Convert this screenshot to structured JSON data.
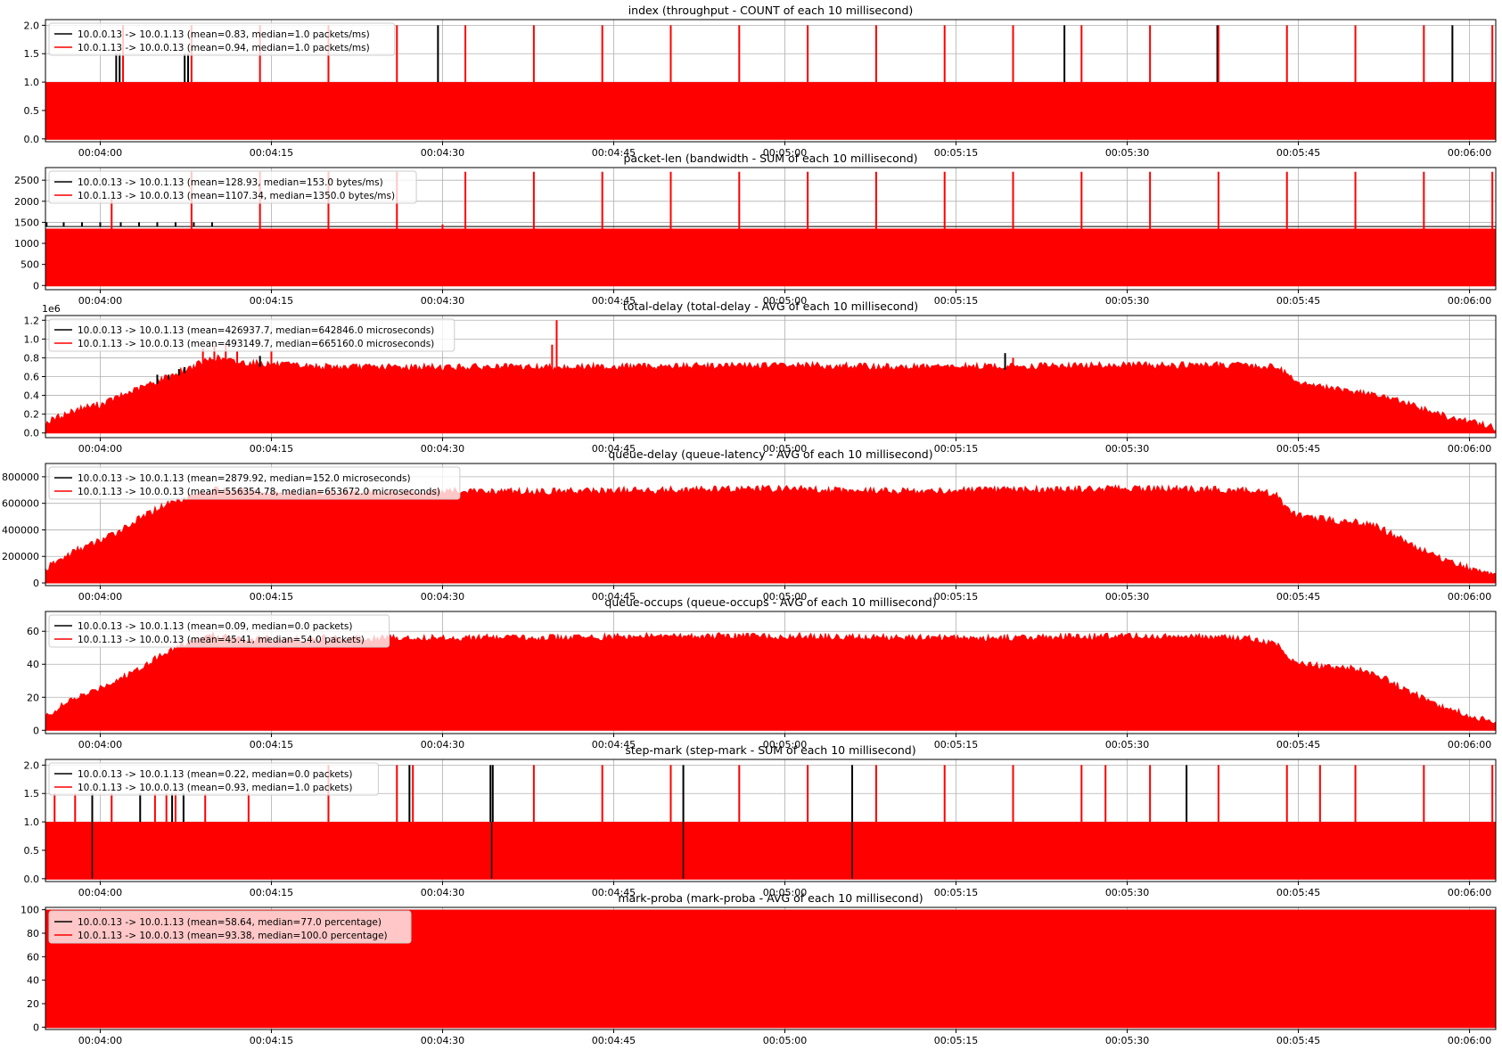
{
  "figure": {
    "colors": {
      "series_a": "#000000",
      "series_b": "#ff0000",
      "grid": "#b0b0b0",
      "axis": "#000000"
    },
    "time_ticks": [
      "00:04:00",
      "00:04:15",
      "00:04:30",
      "00:04:45",
      "00:05:00",
      "00:05:15",
      "00:05:30",
      "00:05:45",
      "00:06:00"
    ]
  },
  "chart_data": [
    {
      "type": "bar",
      "title": "index (throughput - COUNT of each 10 millisecond)",
      "ylim": [
        -0.05,
        2.1
      ],
      "yticks": [
        "0.0",
        "0.5",
        "1.0",
        "1.5",
        "2.0"
      ],
      "ytick_values": [
        0,
        0.5,
        1.0,
        1.5,
        2.0
      ],
      "offset_text": "",
      "xlim_seconds": [
        235.2,
        362.3
      ],
      "grid": true,
      "legend": "upper-left",
      "series": [
        {
          "name": "10.0.0.13 -> 10.0.1.13 (mean=0.83, median=1.0 packets/ms)",
          "color": "#000000",
          "baseline": 1.0,
          "spikes": [
            [
              241.4,
              1.5
            ],
            [
              241.7,
              1.5
            ],
            [
              247.4,
              1.5
            ],
            [
              247.7,
              1.5
            ],
            [
              269.6,
              2.0
            ],
            [
              324.5,
              2.0
            ],
            [
              337.9,
              2.0
            ],
            [
              358.5,
              2.0
            ]
          ]
        },
        {
          "name": "10.0.1.13 -> 10.0.0.13 (mean=0.94, median=1.0 packets/ms)",
          "color": "#ff0000",
          "baseline": 1.0,
          "spikes": [
            [
              242.0,
              2.0
            ],
            [
              248.0,
              2.0
            ],
            [
              254.0,
              2.0
            ],
            [
              260.0,
              2.0
            ],
            [
              266.0,
              2.0
            ],
            [
              272.0,
              2.0
            ],
            [
              278.0,
              2.0
            ],
            [
              284.0,
              2.0
            ],
            [
              290.0,
              2.0
            ],
            [
              296.0,
              2.0
            ],
            [
              302.0,
              2.0
            ],
            [
              308.0,
              2.0
            ],
            [
              314.0,
              2.0
            ],
            [
              320.0,
              2.0
            ],
            [
              326.0,
              2.0
            ],
            [
              332.0,
              2.0
            ],
            [
              338.0,
              2.0
            ],
            [
              344.0,
              2.0
            ],
            [
              350.0,
              2.0
            ],
            [
              356.0,
              2.0
            ],
            [
              362.0,
              2.0
            ]
          ]
        }
      ]
    },
    {
      "type": "bar",
      "title": "packet-len (bandwidth - SUM of each 10 millisecond)",
      "ylim": [
        -100,
        2800
      ],
      "yticks": [
        "0",
        "500",
        "1000",
        "1500",
        "2000",
        "2500"
      ],
      "ytick_values": [
        0,
        500,
        1000,
        1500,
        2000,
        2500
      ],
      "offset_text": "",
      "xlim_seconds": [
        235.2,
        362.3
      ],
      "grid": true,
      "legend": "upper-left",
      "series": [
        {
          "name": "10.0.0.13 -> 10.0.1.13 (mean=128.93, median=153.0 bytes/ms)",
          "color": "#000000",
          "baseline": 1400,
          "spikes": [
            [
              235.3,
              1500
            ],
            [
              236.8,
              1500
            ],
            [
              238.4,
              1500
            ],
            [
              240.0,
              1500
            ],
            [
              241.8,
              1500
            ],
            [
              243.4,
              1500
            ],
            [
              245.0,
              1500
            ],
            [
              246.6,
              1500
            ],
            [
              248.2,
              1500
            ],
            [
              249.8,
              1500
            ]
          ]
        },
        {
          "name": "10.0.1.13 -> 10.0.0.13 (mean=1107.34, median=1350.0 bytes/ms)",
          "color": "#ff0000",
          "baseline": 1350,
          "spikes": [
            [
              241.0,
              2050
            ],
            [
              248.0,
              2700
            ],
            [
              254.0,
              2700
            ],
            [
              260.0,
              2700
            ],
            [
              266.0,
              2700
            ],
            [
              272.0,
              2700
            ],
            [
              278.0,
              2700
            ],
            [
              284.0,
              2700
            ],
            [
              290.0,
              2700
            ],
            [
              296.0,
              2700
            ],
            [
              302.0,
              2700
            ],
            [
              308.0,
              2700
            ],
            [
              314.0,
              2700
            ],
            [
              320.0,
              2700
            ],
            [
              326.0,
              2700
            ],
            [
              332.0,
              2700
            ],
            [
              338.0,
              2700
            ],
            [
              344.0,
              2700
            ],
            [
              350.0,
              2700
            ],
            [
              356.0,
              2700
            ],
            [
              362.0,
              2700
            ],
            [
              270.0,
              1450
            ],
            [
              290.0,
              1450
            ],
            [
              320.0,
              1450
            ],
            [
              350.0,
              1450
            ]
          ]
        }
      ]
    },
    {
      "type": "area",
      "title": "total-delay (total-delay - AVG of each 10 millisecond)",
      "ylim": [
        -0.05,
        1.25
      ],
      "yticks": [
        "0.0",
        "0.2",
        "0.4",
        "0.6",
        "0.8",
        "1.0",
        "1.2"
      ],
      "ytick_values": [
        0,
        0.2,
        0.4,
        0.6,
        0.8,
        1.0,
        1.2
      ],
      "offset_text": "1e6",
      "xlim_seconds": [
        235.2,
        362.3
      ],
      "grid": true,
      "legend": "upper-left",
      "envelope_x_seconds": [
        235.2,
        236,
        237,
        238,
        239,
        240,
        241,
        242,
        243,
        244,
        245,
        246,
        247,
        248,
        249,
        250,
        252,
        254,
        256,
        258,
        260,
        270,
        280,
        290,
        300,
        310,
        320,
        330,
        340,
        343,
        344,
        345,
        346,
        347,
        348,
        350,
        352,
        354,
        356,
        358,
        360,
        362.3
      ],
      "envelope_y": [
        0.1,
        0.15,
        0.2,
        0.25,
        0.28,
        0.3,
        0.35,
        0.4,
        0.45,
        0.5,
        0.55,
        0.6,
        0.65,
        0.7,
        0.75,
        0.8,
        0.75,
        0.74,
        0.72,
        0.71,
        0.7,
        0.7,
        0.7,
        0.71,
        0.72,
        0.7,
        0.71,
        0.72,
        0.72,
        0.7,
        0.63,
        0.55,
        0.5,
        0.5,
        0.46,
        0.44,
        0.4,
        0.33,
        0.25,
        0.17,
        0.12,
        0.05
      ],
      "series": [
        {
          "name": "10.0.0.13 -> 10.0.1.13 (mean=426937.7, median=642846.0 microseconds)",
          "color": "#000000",
          "spikes": [
            [
              245.0,
              0.62
            ],
            [
              246.0,
              0.62
            ],
            [
              246.9,
              0.68
            ],
            [
              247.4,
              0.7
            ],
            [
              254.0,
              0.82
            ],
            [
              319.3,
              0.85
            ]
          ]
        },
        {
          "name": "10.0.1.13 -> 10.0.0.13 (mean=493149.7, median=665160.0 microseconds)",
          "color": "#ff0000",
          "spikes": [
            [
              249.0,
              0.9
            ],
            [
              250.0,
              0.93
            ],
            [
              251.0,
              0.95
            ],
            [
              252.0,
              0.87
            ],
            [
              255.0,
              0.88
            ],
            [
              279.6,
              0.94
            ],
            [
              280.0,
              1.2
            ],
            [
              320.0,
              0.8
            ]
          ]
        }
      ]
    },
    {
      "type": "area",
      "title": "queue-delay (queue-latency - AVG of each 10 millisecond)",
      "ylim": [
        -20000,
        900000
      ],
      "yticks": [
        "0",
        "200000",
        "400000",
        "600000",
        "800000"
      ],
      "ytick_values": [
        0,
        200000,
        400000,
        600000,
        800000
      ],
      "offset_text": "",
      "xlim_seconds": [
        235.2,
        362.3
      ],
      "grid": true,
      "legend": "upper-left",
      "envelope_x_seconds": [
        235.2,
        236,
        237,
        238,
        239,
        240,
        241,
        242,
        243,
        244,
        245,
        246,
        247,
        248,
        249,
        250,
        252,
        254,
        256,
        258,
        260,
        270,
        280,
        290,
        300,
        310,
        320,
        330,
        340,
        343,
        344,
        345,
        346,
        347,
        348,
        350,
        352,
        354,
        356,
        358,
        360,
        362.3
      ],
      "envelope_y": [
        100000,
        150000,
        200000,
        250000,
        280000,
        320000,
        360000,
        410000,
        460000,
        510000,
        560000,
        600000,
        630000,
        660000,
        680000,
        700000,
        690000,
        680000,
        680000,
        670000,
        680000,
        690000,
        690000,
        700000,
        710000,
        690000,
        700000,
        710000,
        700000,
        670000,
        560000,
        500000,
        500000,
        480000,
        470000,
        460000,
        420000,
        330000,
        240000,
        170000,
        110000,
        60000
      ],
      "series": [
        {
          "name": "10.0.0.13 -> 10.0.1.13 (mean=2879.92, median=152.0 microseconds)",
          "color": "#000000",
          "spikes": []
        },
        {
          "name": "10.0.1.13 -> 10.0.0.13 (mean=556354.78, median=653672.0 microseconds)",
          "color": "#ff0000",
          "spikes": []
        }
      ]
    },
    {
      "type": "area",
      "title": "queue-occups (queue-occups - AVG of each 10 millisecond)",
      "ylim": [
        -2,
        72
      ],
      "yticks": [
        "0",
        "20",
        "40",
        "60"
      ],
      "ytick_values": [
        0,
        20,
        40,
        60
      ],
      "offset_text": "",
      "xlim_seconds": [
        235.2,
        362.3
      ],
      "grid": true,
      "legend": "upper-left",
      "envelope_x_seconds": [
        235.2,
        236,
        237,
        238,
        239,
        240,
        241,
        242,
        243,
        244,
        245,
        246,
        247,
        248,
        249,
        250,
        252,
        254,
        256,
        258,
        260,
        270,
        280,
        290,
        300,
        310,
        320,
        330,
        340,
        343,
        344,
        345,
        346,
        347,
        348,
        350,
        352,
        354,
        356,
        358,
        360,
        362.3
      ],
      "envelope_y": [
        8,
        12,
        16,
        20,
        22,
        26,
        29,
        32,
        36,
        40,
        44,
        48,
        51,
        54,
        56,
        57,
        56,
        55,
        55,
        55,
        56,
        56,
        56,
        57,
        57,
        56,
        56,
        57,
        56,
        53,
        45,
        40,
        40,
        39,
        38,
        37,
        33,
        26,
        19,
        13,
        9,
        4
      ],
      "series": [
        {
          "name": "10.0.0.13 -> 10.0.1.13 (mean=0.09, median=0.0 packets)",
          "color": "#000000",
          "spikes": []
        },
        {
          "name": "10.0.1.13 -> 10.0.0.13 (mean=45.41, median=54.0 packets)",
          "color": "#ff0000",
          "spikes": []
        }
      ]
    },
    {
      "type": "bar",
      "title": "step-mark (step-mark - SUM of each 10 millisecond)",
      "ylim": [
        -0.05,
        2.1
      ],
      "yticks": [
        "0.0",
        "0.5",
        "1.0",
        "1.5",
        "2.0"
      ],
      "ytick_values": [
        0,
        0.5,
        1.0,
        1.5,
        2.0
      ],
      "offset_text": "",
      "xlim_seconds": [
        235.2,
        362.3
      ],
      "grid": true,
      "legend": "upper-left",
      "series": [
        {
          "name": "10.0.0.13 -> 10.0.1.13 (mean=0.22, median=0.0 packets)",
          "color": "#000000",
          "baseline": 1.0,
          "spikes": [
            [
              239.3,
              1.5
            ],
            [
              243.5,
              1.5
            ],
            [
              246.3,
              1.5
            ],
            [
              247.3,
              1.5
            ],
            [
              267.1,
              2.0
            ],
            [
              274.2,
              2.0
            ],
            [
              274.4,
              2.0
            ],
            [
              291.1,
              2.0
            ],
            [
              305.9,
              2.0
            ],
            [
              335.2,
              2.0
            ]
          ],
          "dips": [
            [
              239.3,
              0.0
            ],
            [
              274.3,
              0.0
            ],
            [
              291.1,
              0.0
            ],
            [
              305.9,
              0.0
            ]
          ]
        },
        {
          "name": "10.0.1.13 -> 10.0.0.13 (mean=0.93, median=1.0 packets)",
          "color": "#ff0000",
          "baseline": 1.0,
          "spikes": [
            [
              236.0,
              1.5
            ],
            [
              237.8,
              1.5
            ],
            [
              241.0,
              1.5
            ],
            [
              244.8,
              1.5
            ],
            [
              245.8,
              1.5
            ],
            [
              246.6,
              1.5
            ],
            [
              249.2,
              1.5
            ],
            [
              253.0,
              1.5
            ],
            [
              260.0,
              2.0
            ],
            [
              266.0,
              2.0
            ],
            [
              267.4,
              2.0
            ],
            [
              278.0,
              2.0
            ],
            [
              284.0,
              2.0
            ],
            [
              290.0,
              2.0
            ],
            [
              296.0,
              2.0
            ],
            [
              302.0,
              2.0
            ],
            [
              308.0,
              2.0
            ],
            [
              314.0,
              2.0
            ],
            [
              320.0,
              2.0
            ],
            [
              326.0,
              2.0
            ],
            [
              328.1,
              2.0
            ],
            [
              332.0,
              2.0
            ],
            [
              338.0,
              2.0
            ],
            [
              344.0,
              2.0
            ],
            [
              346.9,
              2.0
            ],
            [
              350.0,
              2.0
            ],
            [
              356.0,
              2.0
            ],
            [
              362.0,
              2.0
            ]
          ]
        }
      ]
    },
    {
      "type": "bar",
      "title": "mark-proba (mark-proba - AVG of each 10 millisecond)",
      "ylim": [
        -2,
        102
      ],
      "yticks": [
        "0",
        "20",
        "40",
        "60",
        "80",
        "100"
      ],
      "ytick_values": [
        0,
        20,
        40,
        60,
        80,
        100
      ],
      "offset_text": "",
      "xlim_seconds": [
        235.2,
        362.3
      ],
      "grid": true,
      "legend": "upper-left",
      "series": [
        {
          "name": "10.0.0.13 -> 10.0.1.13 (mean=58.64, median=77.0 percentage)",
          "color": "#000000",
          "baseline": 100,
          "spikes": []
        },
        {
          "name": "10.0.1.13 -> 10.0.0.13 (mean=93.38, median=100.0 percentage)",
          "color": "#ff0000",
          "baseline": 100,
          "spikes": []
        }
      ]
    }
  ]
}
